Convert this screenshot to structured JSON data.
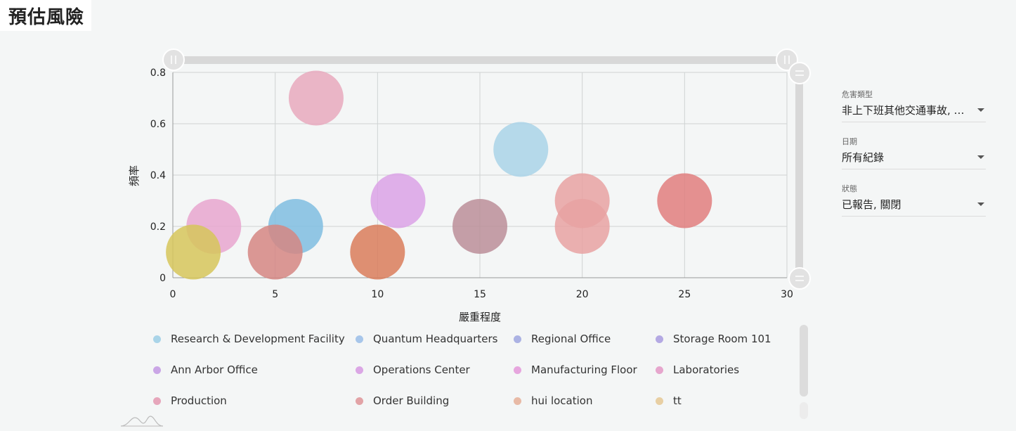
{
  "page": {
    "title": "預估風險"
  },
  "filters": [
    {
      "label": "危害類型",
      "value": "非上下班其他交通事故, …"
    },
    {
      "label": "日期",
      "value": "所有紀錄"
    },
    {
      "label": "狀態",
      "value": "已報告, 關閉"
    }
  ],
  "chart_data": {
    "type": "scatter",
    "xlabel": "嚴重程度",
    "ylabel": "頻率",
    "xlim": [
      0,
      30
    ],
    "ylim": [
      0,
      0.8
    ],
    "xticks": [
      0,
      5,
      10,
      15,
      20,
      25,
      30
    ],
    "yticks": [
      0,
      0.2,
      0.4,
      0.6,
      0.8
    ],
    "grid": true,
    "legend_position": "bottom",
    "legend": [
      {
        "name": "Research & Development Facility",
        "color": "#a9d4e8"
      },
      {
        "name": "Quantum Headquarters",
        "color": "#a7c6ea"
      },
      {
        "name": "Regional Office",
        "color": "#abb2e3"
      },
      {
        "name": "Storage Room 101",
        "color": "#b4a9e3"
      },
      {
        "name": "Ann Arbor Office",
        "color": "#caa6e6"
      },
      {
        "name": "Operations Center",
        "color": "#dba7e5"
      },
      {
        "name": "Manufacturing Floor",
        "color": "#e6a6de"
      },
      {
        "name": "Laboratories",
        "color": "#e6a6cd"
      },
      {
        "name": "Production",
        "color": "#e6a6bb"
      },
      {
        "name": "Order Building",
        "color": "#e2a3a6"
      },
      {
        "name": "hui location",
        "color": "#e8baa6"
      },
      {
        "name": "tt",
        "color": "#e8cfa3"
      }
    ],
    "points": [
      {
        "x": 7,
        "y": 0.7,
        "color": "#e8a9bd"
      },
      {
        "x": 17,
        "y": 0.5,
        "color": "#a9d4e8"
      },
      {
        "x": 11,
        "y": 0.3,
        "color": "#dba2e6"
      },
      {
        "x": 20,
        "y": 0.3,
        "color": "#e8a2a2"
      },
      {
        "x": 25,
        "y": 0.3,
        "color": "#e07e7e"
      },
      {
        "x": 2,
        "y": 0.2,
        "color": "#e8a6cf"
      },
      {
        "x": 6,
        "y": 0.2,
        "color": "#7fbde0"
      },
      {
        "x": 15,
        "y": 0.2,
        "color": "#bb8e99"
      },
      {
        "x": 20,
        "y": 0.2,
        "color": "#e8a2a2"
      },
      {
        "x": 1,
        "y": 0.1,
        "color": "#d6c55a"
      },
      {
        "x": 5,
        "y": 0.1,
        "color": "#d58683"
      },
      {
        "x": 10,
        "y": 0.1,
        "color": "#d97d5b"
      }
    ]
  }
}
